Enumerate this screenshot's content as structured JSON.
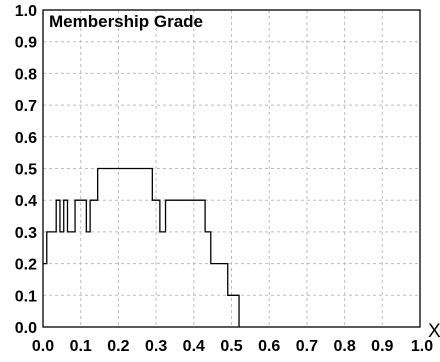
{
  "chart_data": {
    "type": "line",
    "title": "",
    "ylabel": "Membership Grade",
    "xlabel": "X",
    "xlim": [
      0.0,
      1.0
    ],
    "ylim": [
      0.0,
      1.0
    ],
    "grid": true,
    "x_ticks": [
      "0.0",
      "0.1",
      "0.2",
      "0.3",
      "0.4",
      "0.5",
      "0.6",
      "0.7",
      "0.8",
      "0.9",
      "1.0"
    ],
    "y_ticks": [
      "0.0",
      "0.1",
      "0.2",
      "0.3",
      "0.4",
      "0.5",
      "0.6",
      "0.7",
      "0.8",
      "0.9",
      "1.0"
    ],
    "series": [
      {
        "color": "#000000",
        "step": true,
        "x": [
          0.0,
          0.01,
          0.01,
          0.035,
          0.035,
          0.045,
          0.045,
          0.055,
          0.055,
          0.065,
          0.065,
          0.085,
          0.085,
          0.115,
          0.115,
          0.125,
          0.125,
          0.145,
          0.145,
          0.29,
          0.29,
          0.31,
          0.31,
          0.325,
          0.325,
          0.33,
          0.33,
          0.43,
          0.43,
          0.445,
          0.445,
          0.49,
          0.49,
          0.505,
          0.505,
          0.52,
          0.52
        ],
        "y": [
          0.2,
          0.2,
          0.3,
          0.3,
          0.4,
          0.4,
          0.3,
          0.3,
          0.4,
          0.4,
          0.3,
          0.3,
          0.4,
          0.4,
          0.3,
          0.3,
          0.4,
          0.4,
          0.5,
          0.5,
          0.4,
          0.4,
          0.3,
          0.3,
          0.4,
          0.4,
          0.4,
          0.4,
          0.3,
          0.3,
          0.2,
          0.2,
          0.1,
          0.1,
          0.1,
          0.1,
          0.0
        ]
      }
    ]
  }
}
